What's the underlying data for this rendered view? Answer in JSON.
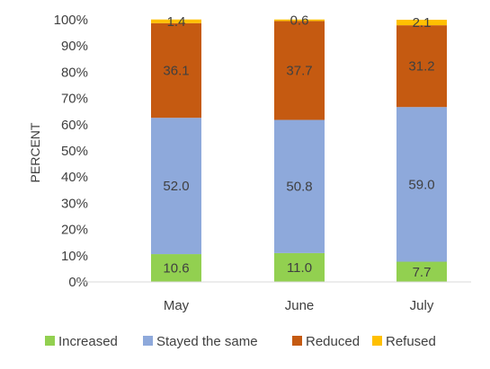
{
  "chart_data": {
    "type": "bar",
    "stacked": true,
    "percent": true,
    "categories": [
      "May",
      "June",
      "July"
    ],
    "ylabel": "PERCENT",
    "ylim": [
      0,
      100
    ],
    "yticks": [
      "0%",
      "10%",
      "20%",
      "30%",
      "40%",
      "50%",
      "60%",
      "70%",
      "80%",
      "90%",
      "100%"
    ],
    "grid": false,
    "legend": "bottom",
    "series": [
      {
        "name": "Increased",
        "values": [
          10.6,
          11.0,
          7.7
        ],
        "labels": [
          "10.6",
          "11.0",
          "7.7"
        ],
        "color": "#92D050"
      },
      {
        "name": "Stayed the same",
        "values": [
          52.0,
          50.8,
          59.0
        ],
        "labels": [
          "52.0",
          "50.8",
          "59.0"
        ],
        "color": "#8EA9DB"
      },
      {
        "name": "Reduced",
        "values": [
          36.1,
          37.7,
          31.2
        ],
        "labels": [
          "36.1",
          "37.7",
          "31.2"
        ],
        "color": "#C55A11"
      },
      {
        "name": "Refused",
        "values": [
          1.4,
          0.6,
          2.1
        ],
        "labels": [
          "1.4",
          "0.6",
          "2.1"
        ],
        "color": "#FFC000"
      }
    ]
  }
}
